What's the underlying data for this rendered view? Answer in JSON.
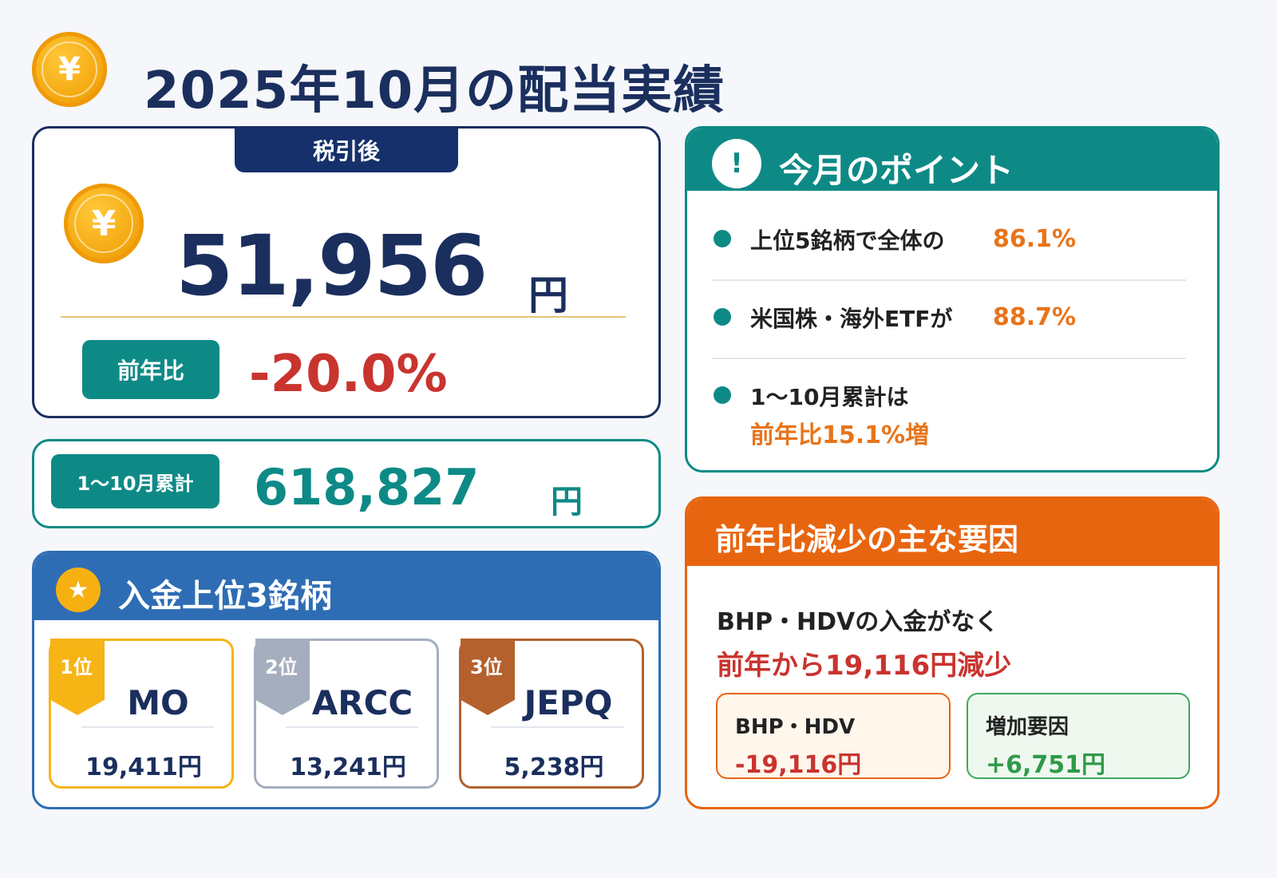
{
  "header": {
    "title": "2025年10月の配当実績",
    "coin_icon": "yen-coin-icon"
  },
  "main": {
    "tag": "税引後",
    "amount": "51,956",
    "unit": "円",
    "yoy_label": "前年比",
    "yoy_value": "-20.0%"
  },
  "cumulative": {
    "label": "1〜10月累計",
    "amount": "618,827",
    "unit": "円"
  },
  "top3": {
    "title": "入金上位3銘柄",
    "items": [
      {
        "rank": "1位",
        "ticker": "MO",
        "amount": "19,411円",
        "color": "#f6b415"
      },
      {
        "rank": "2位",
        "ticker": "ARCC",
        "amount": "13,241円",
        "color": "#a4aebe"
      },
      {
        "rank": "3位",
        "ticker": "JEPQ",
        "amount": "5,238円",
        "color": "#b4612d"
      }
    ]
  },
  "points": {
    "title": "今月のポイント",
    "items": [
      {
        "text": "上位5銘柄で全体の",
        "value": "86.1%"
      },
      {
        "text": "米国株・海外ETFが",
        "value": "88.7%"
      },
      {
        "text": "1〜10月累計は",
        "value": "前年比15.1%増"
      }
    ]
  },
  "decrease": {
    "title": "前年比減少の主な要因",
    "line1": "BHP・HDVの入金がなく",
    "line2": "前年から19,116円減少",
    "cards": [
      {
        "label": "BHP・HDV",
        "value": "-19,116円"
      },
      {
        "label": "増加要因",
        "value": "+6,751円"
      }
    ]
  },
  "colors": {
    "navy": "#1b2f5e",
    "teal": "#0e8a86",
    "blue": "#2e6db4",
    "orange": "#e8650f",
    "red": "#c9342f",
    "gold": "#f6b415"
  }
}
